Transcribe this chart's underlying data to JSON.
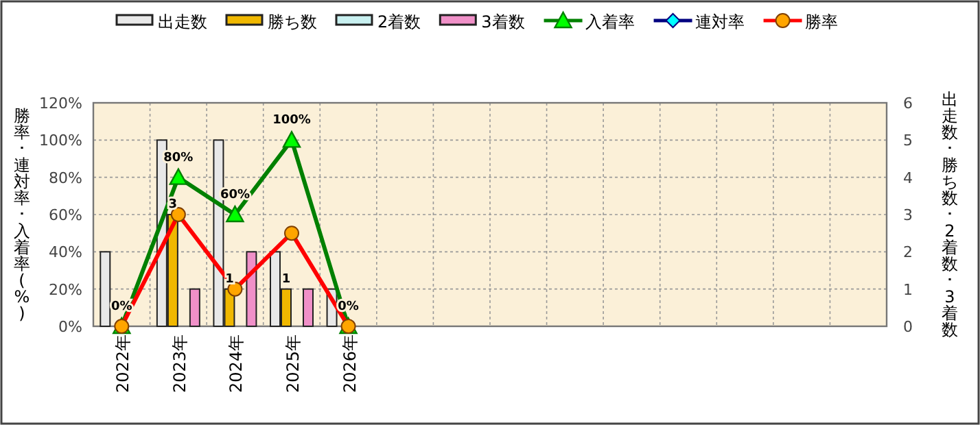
{
  "chart_data": {
    "type": "bar",
    "categories": [
      "2022年",
      "2023年",
      "2024年",
      "2025年",
      "2026年",
      null,
      null,
      null,
      null,
      null,
      null,
      null,
      null,
      null
    ],
    "ylabel": "勝率･連対率･入着率(%)",
    "y2label": "出走数･勝ち数･2着数･3着数",
    "ylim": [
      0,
      120
    ],
    "yticks": [
      {
        "value": 0,
        "label": "0%"
      },
      {
        "value": 20,
        "label": "20%"
      },
      {
        "value": 40,
        "label": "40%"
      },
      {
        "value": 60,
        "label": "60%"
      },
      {
        "value": 80,
        "label": "80%"
      },
      {
        "value": 100,
        "label": "100%"
      },
      {
        "value": 120,
        "label": "120%"
      }
    ],
    "y2lim": [
      0,
      6
    ],
    "y2ticks": [
      0,
      1,
      2,
      3,
      4,
      5,
      6
    ],
    "grid": true,
    "legend": "top",
    "series": [
      {
        "name": "出走数",
        "type": "bar",
        "axis": "y2",
        "color": "#e8e8e8",
        "values": [
          2,
          5,
          5,
          2,
          1,
          null,
          null,
          null,
          null,
          null,
          null,
          null,
          null,
          null
        ]
      },
      {
        "name": "勝ち数",
        "type": "bar",
        "axis": "y2",
        "color": "#f0b800",
        "values": [
          0,
          3,
          1,
          1,
          0,
          null,
          null,
          null,
          null,
          null,
          null,
          null,
          null,
          null
        ],
        "value_labels": [
          null,
          "3",
          "1",
          "1",
          null,
          null,
          null,
          null,
          null,
          null,
          null,
          null,
          null,
          null
        ]
      },
      {
        "name": "2着数",
        "type": "bar",
        "axis": "y2",
        "color": "#c8f0f0",
        "values": [
          0,
          0,
          0,
          0,
          0,
          null,
          null,
          null,
          null,
          null,
          null,
          null,
          null,
          null
        ]
      },
      {
        "name": "3着数",
        "type": "bar",
        "axis": "y2",
        "color": "#f090c8",
        "values": [
          0,
          1,
          2,
          1,
          0,
          null,
          null,
          null,
          null,
          null,
          null,
          null,
          null,
          null
        ]
      },
      {
        "name": "入着率",
        "type": "line",
        "color": "#008000",
        "marker": "triangle",
        "values": [
          0,
          80,
          60,
          100,
          0,
          null,
          null,
          null,
          null,
          null,
          null,
          null,
          null,
          null
        ],
        "value_labels": [
          "0%",
          "80%",
          "60%",
          "100%",
          "0%",
          null,
          null,
          null,
          null,
          null,
          null,
          null,
          null,
          null
        ]
      },
      {
        "name": "連対率",
        "type": "line",
        "color": "#000080",
        "marker": "diamond",
        "values": [
          null,
          null,
          null,
          null,
          null,
          null,
          null,
          null,
          null,
          null,
          null,
          null,
          null,
          null
        ]
      },
      {
        "name": "勝率",
        "type": "line",
        "color": "#ff0000",
        "marker": "circle",
        "values": [
          0,
          60,
          20,
          50,
          0,
          null,
          null,
          null,
          null,
          null,
          null,
          null,
          null,
          null
        ]
      }
    ]
  }
}
